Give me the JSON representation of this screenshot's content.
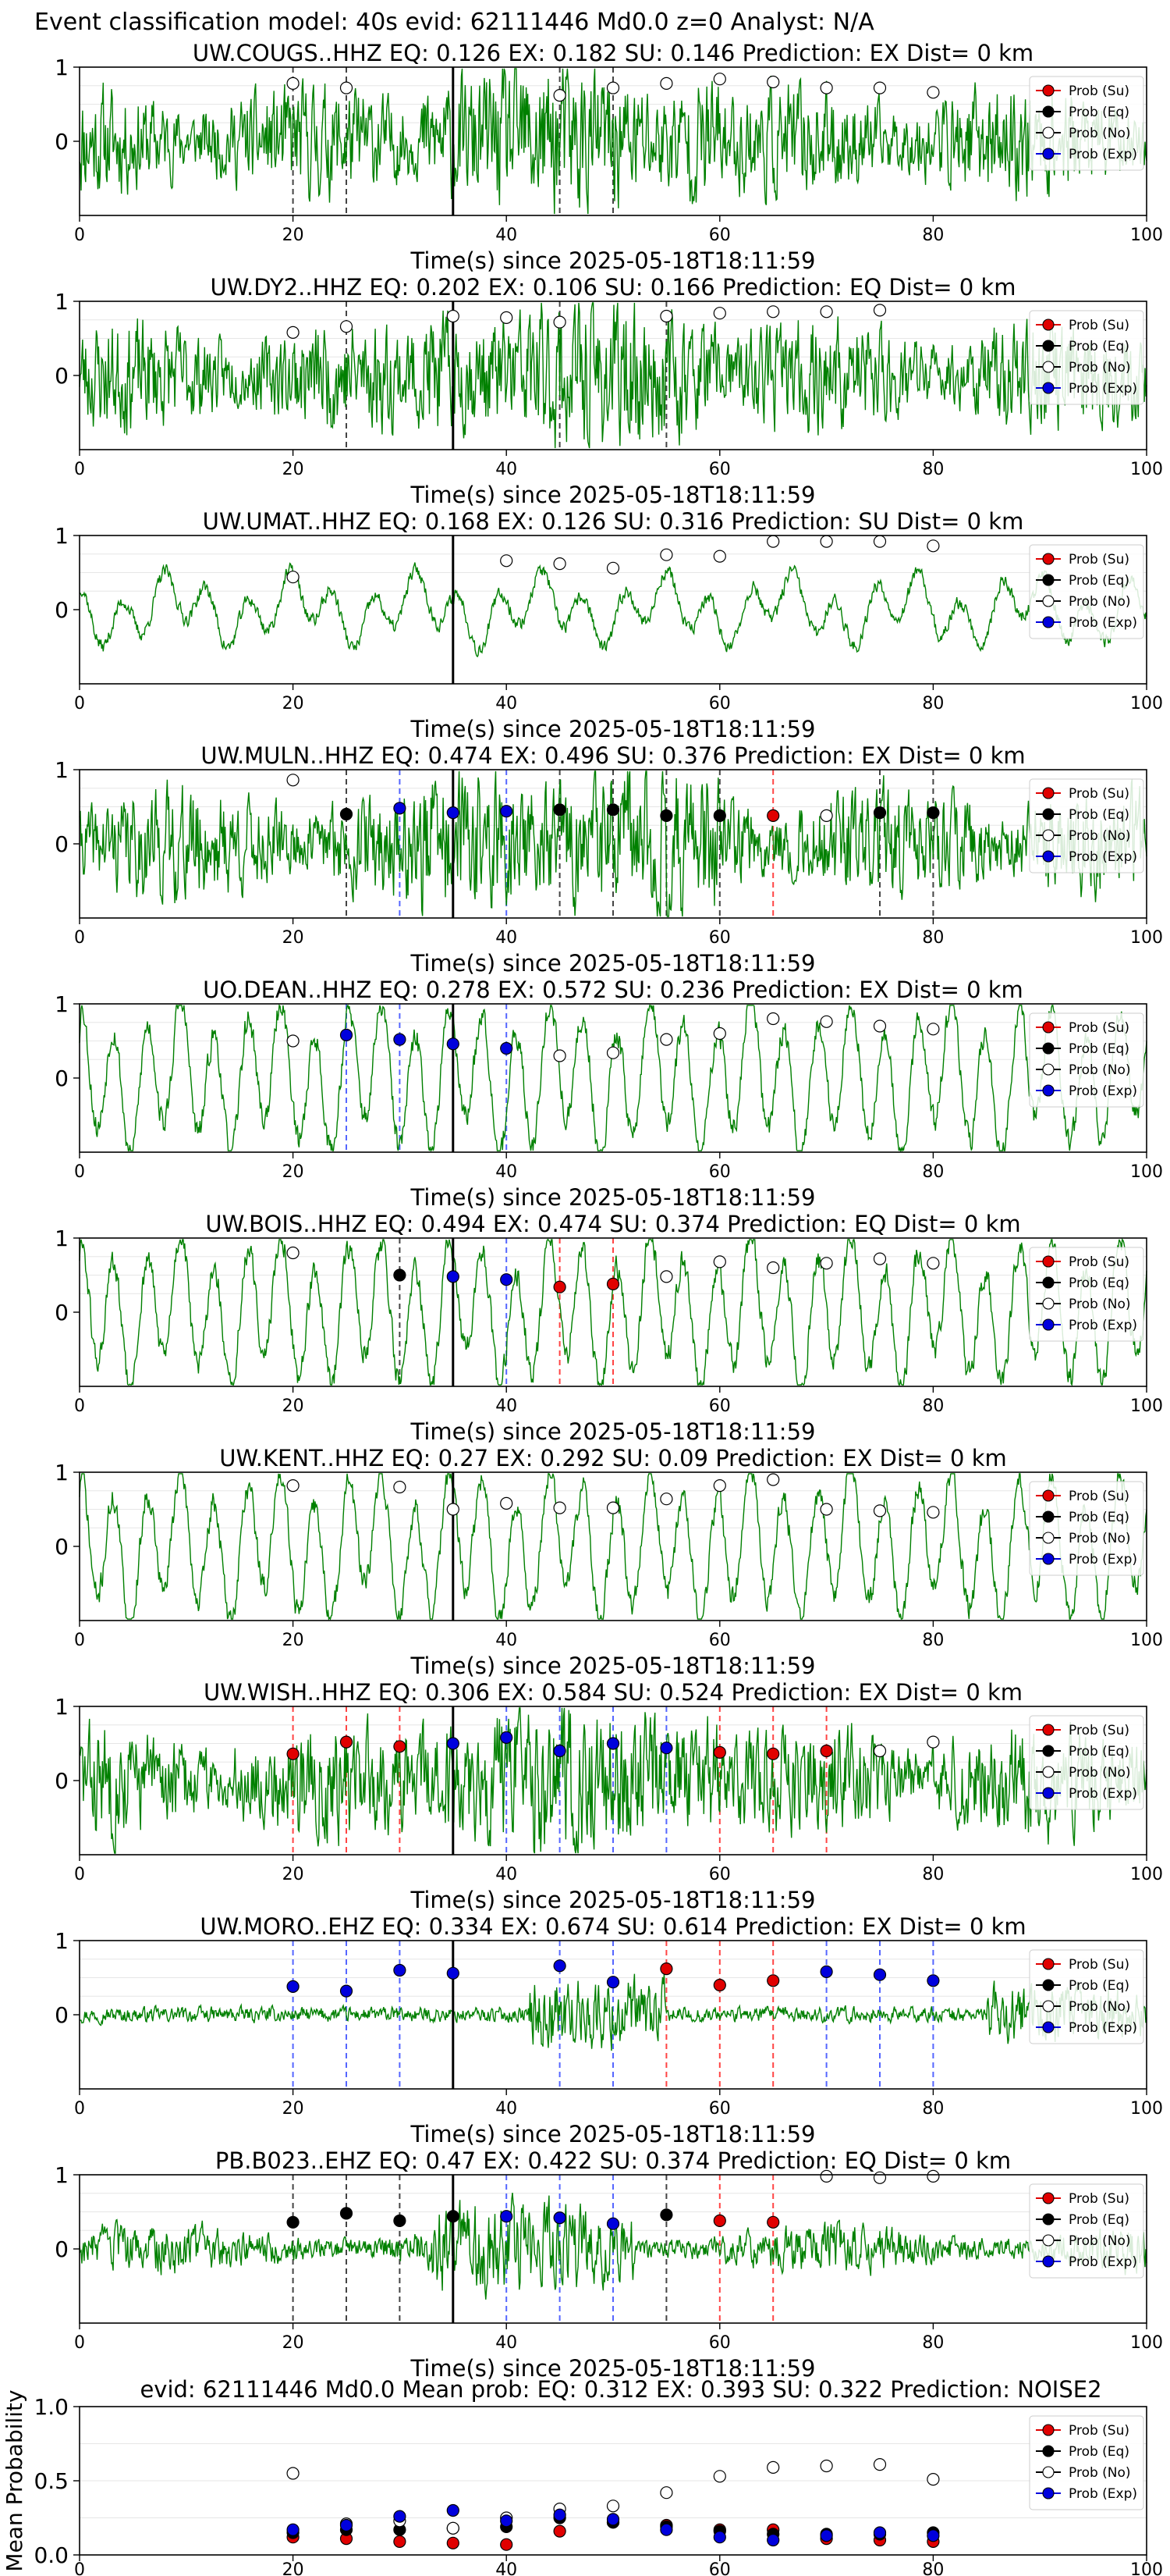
{
  "suptitle": "Event classification model: 40s evid: 62111446 Md0.0 z=0 Analyst: N/A",
  "xlabel": "Time(s) since 2025-05-18T18:11:59",
  "x_ticks": [
    "0",
    "20",
    "40",
    "60",
    "80",
    "100"
  ],
  "y_ticks": [
    "0",
    "1"
  ],
  "legend": [
    "Prob (Su)",
    "Prob (Eq)",
    "Prob (No)",
    "Prob (Exp)"
  ],
  "colors": {
    "trace": "#008000",
    "su": "#e00000",
    "eq": "#000000",
    "no": "#ffffff",
    "exp": "#0000dd",
    "su_line": "#ff4444",
    "exp_line": "#5566ff",
    "eq_line": "#444444"
  },
  "chart_data": [
    {
      "type": "line",
      "title": "UW.COUGS..HHZ   EQ: 0.126  EX: 0.182  SU: 0.146   Prediction: EX    Dist= 0 km",
      "xlim": [
        0,
        100
      ],
      "ylim": [
        -1,
        1
      ],
      "pick": 35,
      "seed": 11,
      "style": "burst",
      "points": [
        {
          "x": 20,
          "p": 0.78,
          "c": "no"
        },
        {
          "x": 25,
          "p": 0.72,
          "c": "no"
        },
        {
          "x": 45,
          "p": 0.62,
          "c": "no"
        },
        {
          "x": 50,
          "p": 0.72,
          "c": "no"
        },
        {
          "x": 55,
          "p": 0.78,
          "c": "no"
        },
        {
          "x": 60,
          "p": 0.84,
          "c": "no"
        },
        {
          "x": 65,
          "p": 0.8,
          "c": "no"
        },
        {
          "x": 70,
          "p": 0.72,
          "c": "no"
        },
        {
          "x": 75,
          "p": 0.72,
          "c": "no"
        },
        {
          "x": 80,
          "p": 0.66,
          "c": "no"
        }
      ],
      "lines": [
        {
          "x": 20,
          "c": "eq"
        },
        {
          "x": 25,
          "c": "eq"
        },
        {
          "x": 45,
          "c": "eq"
        },
        {
          "x": 50,
          "c": "eq"
        }
      ]
    },
    {
      "type": "line",
      "title": "UW.DY2..HHZ   EQ: 0.202  EX: 0.106  SU: 0.166   Prediction: EQ    Dist= 0 km",
      "xlim": [
        0,
        100
      ],
      "ylim": [
        -1,
        1
      ],
      "pick": 35,
      "seed": 23,
      "style": "burst",
      "points": [
        {
          "x": 20,
          "p": 0.58,
          "c": "no"
        },
        {
          "x": 25,
          "p": 0.66,
          "c": "no"
        },
        {
          "x": 35,
          "p": 0.8,
          "c": "no"
        },
        {
          "x": 40,
          "p": 0.78,
          "c": "no"
        },
        {
          "x": 45,
          "p": 0.72,
          "c": "no"
        },
        {
          "x": 55,
          "p": 0.8,
          "c": "no"
        },
        {
          "x": 60,
          "p": 0.84,
          "c": "no"
        },
        {
          "x": 65,
          "p": 0.86,
          "c": "no"
        },
        {
          "x": 70,
          "p": 0.86,
          "c": "no"
        },
        {
          "x": 75,
          "p": 0.88,
          "c": "no"
        }
      ],
      "lines": [
        {
          "x": 25,
          "c": "eq"
        },
        {
          "x": 45,
          "c": "eq"
        },
        {
          "x": 55,
          "c": "eq"
        }
      ]
    },
    {
      "type": "line",
      "title": "UW.UMAT..HHZ   EQ: 0.168  EX: 0.126  SU: 0.316   Prediction: SU    Dist= 0 km",
      "xlim": [
        0,
        100
      ],
      "ylim": [
        -1,
        1
      ],
      "pick": 35,
      "seed": 37,
      "style": "smooth",
      "points": [
        {
          "x": 20,
          "p": 0.44,
          "c": "no"
        },
        {
          "x": 40,
          "p": 0.66,
          "c": "no"
        },
        {
          "x": 45,
          "p": 0.62,
          "c": "no"
        },
        {
          "x": 50,
          "p": 0.56,
          "c": "no"
        },
        {
          "x": 55,
          "p": 0.74,
          "c": "no"
        },
        {
          "x": 60,
          "p": 0.72,
          "c": "no"
        },
        {
          "x": 65,
          "p": 0.92,
          "c": "no"
        },
        {
          "x": 70,
          "p": 0.92,
          "c": "no"
        },
        {
          "x": 75,
          "p": 0.92,
          "c": "no"
        },
        {
          "x": 80,
          "p": 0.86,
          "c": "no"
        }
      ],
      "lines": []
    },
    {
      "type": "line",
      "title": "UW.MULN..HHZ   EQ: 0.474  EX: 0.496  SU: 0.376   Prediction: EX    Dist= 0 km",
      "xlim": [
        0,
        100
      ],
      "ylim": [
        -1,
        1
      ],
      "pick": 35,
      "seed": 41,
      "style": "burst",
      "points": [
        {
          "x": 20,
          "p": 0.86,
          "c": "no"
        },
        {
          "x": 25,
          "p": 0.4,
          "c": "eq"
        },
        {
          "x": 30,
          "p": 0.48,
          "c": "exp"
        },
        {
          "x": 35,
          "p": 0.42,
          "c": "exp"
        },
        {
          "x": 40,
          "p": 0.44,
          "c": "exp"
        },
        {
          "x": 45,
          "p": 0.46,
          "c": "eq"
        },
        {
          "x": 50,
          "p": 0.46,
          "c": "eq"
        },
        {
          "x": 55,
          "p": 0.38,
          "c": "eq"
        },
        {
          "x": 60,
          "p": 0.38,
          "c": "eq"
        },
        {
          "x": 65,
          "p": 0.38,
          "c": "su"
        },
        {
          "x": 70,
          "p": 0.38,
          "c": "no"
        },
        {
          "x": 75,
          "p": 0.42,
          "c": "eq"
        },
        {
          "x": 80,
          "p": 0.42,
          "c": "eq"
        }
      ],
      "lines": [
        {
          "x": 25,
          "c": "eq"
        },
        {
          "x": 30,
          "c": "exp"
        },
        {
          "x": 40,
          "c": "exp"
        },
        {
          "x": 45,
          "c": "eq"
        },
        {
          "x": 50,
          "c": "eq"
        },
        {
          "x": 55,
          "c": "eq"
        },
        {
          "x": 60,
          "c": "eq"
        },
        {
          "x": 65,
          "c": "su"
        },
        {
          "x": 75,
          "c": "eq"
        },
        {
          "x": 80,
          "c": "eq"
        }
      ]
    },
    {
      "type": "line",
      "title": "UO.DEAN..HHZ   EQ: 0.278  EX: 0.572  SU: 0.236   Prediction: EX    Dist= 0 km",
      "xlim": [
        0,
        100
      ],
      "ylim": [
        -1,
        1
      ],
      "pick": 35,
      "seed": 53,
      "style": "wave",
      "points": [
        {
          "x": 20,
          "p": 0.5,
          "c": "no"
        },
        {
          "x": 25,
          "p": 0.58,
          "c": "exp"
        },
        {
          "x": 30,
          "p": 0.52,
          "c": "exp"
        },
        {
          "x": 35,
          "p": 0.46,
          "c": "exp"
        },
        {
          "x": 40,
          "p": 0.4,
          "c": "exp"
        },
        {
          "x": 45,
          "p": 0.3,
          "c": "no"
        },
        {
          "x": 50,
          "p": 0.34,
          "c": "no"
        },
        {
          "x": 55,
          "p": 0.52,
          "c": "no"
        },
        {
          "x": 60,
          "p": 0.6,
          "c": "no"
        },
        {
          "x": 65,
          "p": 0.8,
          "c": "no"
        },
        {
          "x": 70,
          "p": 0.76,
          "c": "no"
        },
        {
          "x": 75,
          "p": 0.7,
          "c": "no"
        },
        {
          "x": 80,
          "p": 0.66,
          "c": "no"
        }
      ],
      "lines": [
        {
          "x": 25,
          "c": "exp"
        },
        {
          "x": 30,
          "c": "exp"
        },
        {
          "x": 40,
          "c": "exp"
        }
      ]
    },
    {
      "type": "line",
      "title": "UW.BOIS..HHZ   EQ: 0.494  EX: 0.474  SU: 0.374   Prediction: EQ    Dist= 0 km",
      "xlim": [
        0,
        100
      ],
      "ylim": [
        -1,
        1
      ],
      "pick": 35,
      "seed": 61,
      "style": "wave",
      "points": [
        {
          "x": 20,
          "p": 0.8,
          "c": "no"
        },
        {
          "x": 30,
          "p": 0.5,
          "c": "eq"
        },
        {
          "x": 35,
          "p": 0.48,
          "c": "exp"
        },
        {
          "x": 40,
          "p": 0.44,
          "c": "exp"
        },
        {
          "x": 45,
          "p": 0.34,
          "c": "su"
        },
        {
          "x": 50,
          "p": 0.38,
          "c": "su"
        },
        {
          "x": 55,
          "p": 0.48,
          "c": "no"
        },
        {
          "x": 60,
          "p": 0.68,
          "c": "no"
        },
        {
          "x": 65,
          "p": 0.6,
          "c": "no"
        },
        {
          "x": 70,
          "p": 0.66,
          "c": "no"
        },
        {
          "x": 75,
          "p": 0.72,
          "c": "no"
        },
        {
          "x": 80,
          "p": 0.66,
          "c": "no"
        }
      ],
      "lines": [
        {
          "x": 30,
          "c": "eq"
        },
        {
          "x": 40,
          "c": "exp"
        },
        {
          "x": 45,
          "c": "su"
        },
        {
          "x": 50,
          "c": "su"
        }
      ]
    },
    {
      "type": "line",
      "title": "UW.KENT..HHZ   EQ: 0.27  EX: 0.292  SU: 0.09   Prediction: EX    Dist= 0 km",
      "xlim": [
        0,
        100
      ],
      "ylim": [
        -1,
        1
      ],
      "pick": 35,
      "seed": 71,
      "style": "wave",
      "points": [
        {
          "x": 20,
          "p": 0.82,
          "c": "no"
        },
        {
          "x": 30,
          "p": 0.8,
          "c": "no"
        },
        {
          "x": 35,
          "p": 0.5,
          "c": "no"
        },
        {
          "x": 40,
          "p": 0.58,
          "c": "no"
        },
        {
          "x": 45,
          "p": 0.52,
          "c": "no"
        },
        {
          "x": 50,
          "p": 0.52,
          "c": "no"
        },
        {
          "x": 55,
          "p": 0.64,
          "c": "no"
        },
        {
          "x": 60,
          "p": 0.82,
          "c": "no"
        },
        {
          "x": 65,
          "p": 0.9,
          "c": "no"
        },
        {
          "x": 70,
          "p": 0.5,
          "c": "no"
        },
        {
          "x": 75,
          "p": 0.48,
          "c": "no"
        },
        {
          "x": 80,
          "p": 0.46,
          "c": "no"
        }
      ],
      "lines": []
    },
    {
      "type": "line",
      "title": "UW.WISH..HHZ   EQ: 0.306  EX: 0.584  SU: 0.524   Prediction: EX    Dist= 0 km",
      "xlim": [
        0,
        100
      ],
      "ylim": [
        -1,
        1
      ],
      "pick": 35,
      "seed": 83,
      "style": "burst",
      "points": [
        {
          "x": 20,
          "p": 0.36,
          "c": "su"
        },
        {
          "x": 25,
          "p": 0.52,
          "c": "su"
        },
        {
          "x": 30,
          "p": 0.46,
          "c": "su"
        },
        {
          "x": 35,
          "p": 0.5,
          "c": "exp"
        },
        {
          "x": 40,
          "p": 0.58,
          "c": "exp"
        },
        {
          "x": 45,
          "p": 0.4,
          "c": "exp"
        },
        {
          "x": 50,
          "p": 0.5,
          "c": "exp"
        },
        {
          "x": 55,
          "p": 0.44,
          "c": "exp"
        },
        {
          "x": 60,
          "p": 0.38,
          "c": "su"
        },
        {
          "x": 65,
          "p": 0.36,
          "c": "su"
        },
        {
          "x": 70,
          "p": 0.4,
          "c": "su"
        },
        {
          "x": 75,
          "p": 0.4,
          "c": "no"
        },
        {
          "x": 80,
          "p": 0.52,
          "c": "no"
        }
      ],
      "lines": [
        {
          "x": 20,
          "c": "su"
        },
        {
          "x": 25,
          "c": "su"
        },
        {
          "x": 30,
          "c": "su"
        },
        {
          "x": 40,
          "c": "exp"
        },
        {
          "x": 45,
          "c": "exp"
        },
        {
          "x": 50,
          "c": "exp"
        },
        {
          "x": 55,
          "c": "exp"
        },
        {
          "x": 60,
          "c": "su"
        },
        {
          "x": 65,
          "c": "su"
        },
        {
          "x": 70,
          "c": "su"
        }
      ]
    },
    {
      "type": "line",
      "title": "UW.MORO..EHZ   EQ: 0.334  EX: 0.674  SU: 0.614   Prediction: EX    Dist= 0 km",
      "xlim": [
        0,
        100
      ],
      "ylim": [
        -1,
        1
      ],
      "pick": 35,
      "seed": 97,
      "style": "quiet",
      "points": [
        {
          "x": 20,
          "p": 0.38,
          "c": "exp"
        },
        {
          "x": 25,
          "p": 0.32,
          "c": "exp"
        },
        {
          "x": 30,
          "p": 0.6,
          "c": "exp"
        },
        {
          "x": 35,
          "p": 0.56,
          "c": "exp"
        },
        {
          "x": 45,
          "p": 0.66,
          "c": "exp"
        },
        {
          "x": 50,
          "p": 0.44,
          "c": "exp"
        },
        {
          "x": 55,
          "p": 0.62,
          "c": "su"
        },
        {
          "x": 60,
          "p": 0.4,
          "c": "su"
        },
        {
          "x": 65,
          "p": 0.46,
          "c": "su"
        },
        {
          "x": 70,
          "p": 0.58,
          "c": "exp"
        },
        {
          "x": 75,
          "p": 0.54,
          "c": "exp"
        },
        {
          "x": 80,
          "p": 0.46,
          "c": "exp"
        }
      ],
      "lines": [
        {
          "x": 20,
          "c": "exp"
        },
        {
          "x": 25,
          "c": "exp"
        },
        {
          "x": 30,
          "c": "exp"
        },
        {
          "x": 45,
          "c": "exp"
        },
        {
          "x": 50,
          "c": "exp"
        },
        {
          "x": 55,
          "c": "su"
        },
        {
          "x": 60,
          "c": "su"
        },
        {
          "x": 65,
          "c": "su"
        },
        {
          "x": 70,
          "c": "exp"
        },
        {
          "x": 75,
          "c": "exp"
        },
        {
          "x": 80,
          "c": "exp"
        }
      ]
    },
    {
      "type": "line",
      "title": "PB.B023..EHZ   EQ: 0.47  EX: 0.422  SU: 0.374   Prediction: EQ    Dist= 0 km",
      "xlim": [
        0,
        100
      ],
      "ylim": [
        -1,
        1
      ],
      "pick": 35,
      "seed": 103,
      "style": "noise",
      "points": [
        {
          "x": 20,
          "p": 0.36,
          "c": "eq"
        },
        {
          "x": 25,
          "p": 0.48,
          "c": "eq"
        },
        {
          "x": 30,
          "p": 0.38,
          "c": "eq"
        },
        {
          "x": 35,
          "p": 0.44,
          "c": "eq"
        },
        {
          "x": 40,
          "p": 0.44,
          "c": "exp"
        },
        {
          "x": 45,
          "p": 0.42,
          "c": "exp"
        },
        {
          "x": 50,
          "p": 0.34,
          "c": "exp"
        },
        {
          "x": 55,
          "p": 0.46,
          "c": "eq"
        },
        {
          "x": 60,
          "p": 0.38,
          "c": "su"
        },
        {
          "x": 65,
          "p": 0.36,
          "c": "su"
        },
        {
          "x": 70,
          "p": 0.98,
          "c": "no"
        },
        {
          "x": 75,
          "p": 0.96,
          "c": "no"
        },
        {
          "x": 80,
          "p": 0.98,
          "c": "no"
        }
      ],
      "lines": [
        {
          "x": 20,
          "c": "eq"
        },
        {
          "x": 25,
          "c": "eq"
        },
        {
          "x": 30,
          "c": "eq"
        },
        {
          "x": 40,
          "c": "exp"
        },
        {
          "x": 45,
          "c": "exp"
        },
        {
          "x": 50,
          "c": "exp"
        },
        {
          "x": 55,
          "c": "eq"
        },
        {
          "x": 60,
          "c": "su"
        },
        {
          "x": 65,
          "c": "su"
        }
      ]
    }
  ],
  "mean_panel": {
    "type": "scatter",
    "title": "evid: 62111446  Md0.0   Mean prob:   EQ: 0.312  EX: 0.393  SU: 0.322   Prediction: NOISE2",
    "ylabel": "Mean Probability",
    "xlim": [
      0,
      100
    ],
    "ylim": [
      0,
      1
    ],
    "y_ticks": [
      "0.0",
      "0.5",
      "1.0"
    ],
    "x": [
      20,
      25,
      30,
      35,
      40,
      45,
      50,
      55,
      60,
      65,
      70,
      75,
      80
    ],
    "series": [
      {
        "name": "Prob (Su)",
        "c": "su",
        "values": [
          0.12,
          0.11,
          0.09,
          0.08,
          0.07,
          0.16,
          0.22,
          0.2,
          0.17,
          0.17,
          0.11,
          0.1,
          0.09
        ]
      },
      {
        "name": "Prob (Eq)",
        "c": "eq",
        "values": [
          0.15,
          0.17,
          0.17,
          0.18,
          0.19,
          0.25,
          0.22,
          0.19,
          0.16,
          0.14,
          0.14,
          0.14,
          0.15
        ]
      },
      {
        "name": "Prob (No)",
        "c": "no",
        "values": [
          0.55,
          0.21,
          0.23,
          0.18,
          0.25,
          0.31,
          0.33,
          0.42,
          0.53,
          0.59,
          0.6,
          0.61,
          0.51
        ]
      },
      {
        "name": "Prob (Exp)",
        "c": "exp",
        "values": [
          0.17,
          0.2,
          0.26,
          0.3,
          0.23,
          0.27,
          0.24,
          0.17,
          0.12,
          0.1,
          0.13,
          0.15,
          0.13
        ]
      }
    ]
  }
}
